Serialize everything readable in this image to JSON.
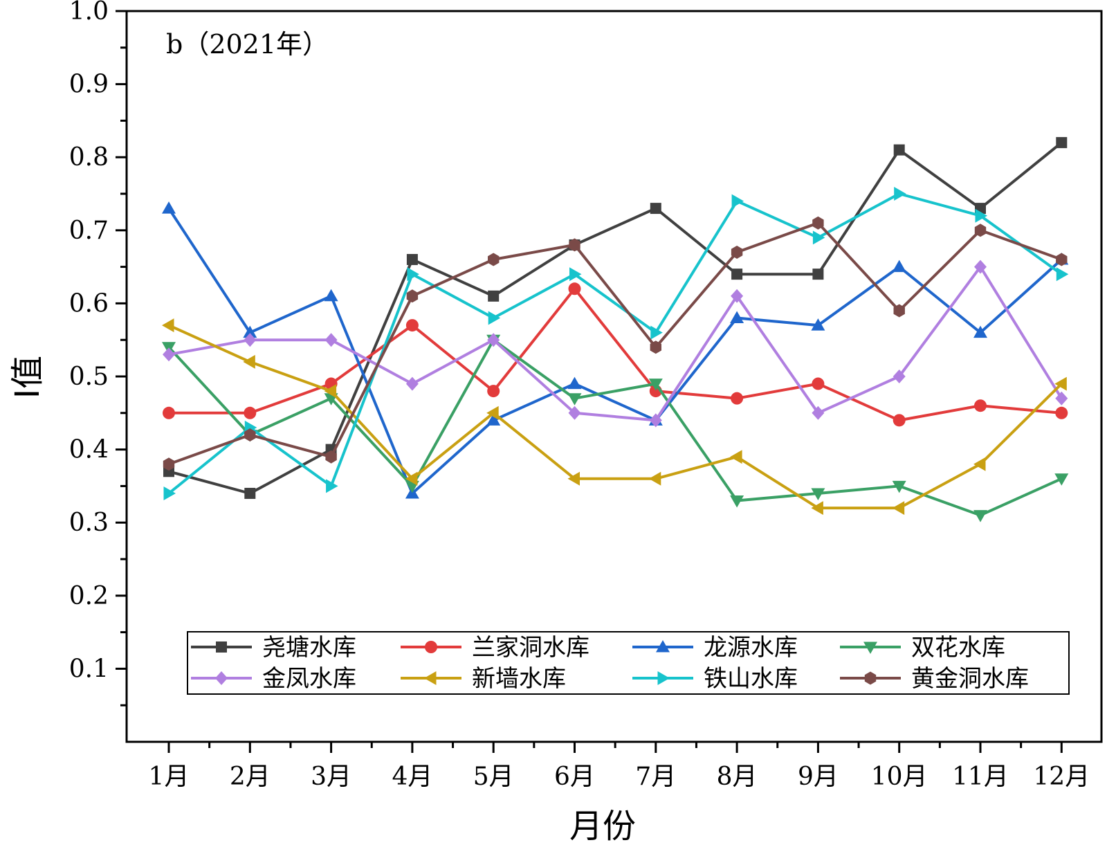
{
  "chart_data": {
    "type": "line",
    "panel_label": "b（2021年）",
    "xlabel": "月份",
    "ylabel": "I值",
    "ylim": [
      0,
      1.0
    ],
    "y_ticks": [
      "0.1",
      "0.2",
      "0.3",
      "0.4",
      "0.5",
      "0.6",
      "0.7",
      "0.8",
      "0.9",
      "1.0"
    ],
    "categories": [
      "1月",
      "2月",
      "3月",
      "4月",
      "5月",
      "6月",
      "7月",
      "8月",
      "9月",
      "10月",
      "11月",
      "12月"
    ],
    "legend_position": "bottom-center",
    "grid": false,
    "series": [
      {
        "name": "尧塘水库",
        "color": "#404040",
        "marker": "square",
        "values": [
          0.37,
          0.34,
          0.4,
          0.66,
          0.61,
          0.68,
          0.73,
          0.64,
          0.64,
          0.81,
          0.73,
          0.82
        ]
      },
      {
        "name": "兰家洞水库",
        "color": "#e23b3b",
        "marker": "circle",
        "values": [
          0.45,
          0.45,
          0.49,
          0.57,
          0.48,
          0.62,
          0.48,
          0.47,
          0.49,
          0.44,
          0.46,
          0.45
        ]
      },
      {
        "name": "龙源水库",
        "color": "#1f66cc",
        "marker": "triangle-up",
        "values": [
          0.73,
          0.56,
          0.61,
          0.34,
          0.44,
          0.49,
          0.44,
          0.58,
          0.57,
          0.65,
          0.56,
          0.66
        ]
      },
      {
        "name": "双花水库",
        "color": "#3aa065",
        "marker": "triangle-down",
        "values": [
          0.54,
          0.42,
          0.47,
          0.35,
          0.55,
          0.47,
          0.49,
          0.33,
          0.34,
          0.35,
          0.31,
          0.36
        ]
      },
      {
        "name": "金凤水库",
        "color": "#b07fe0",
        "marker": "diamond",
        "values": [
          0.53,
          0.55,
          0.55,
          0.49,
          0.55,
          0.45,
          0.44,
          0.61,
          0.45,
          0.5,
          0.65,
          0.47
        ]
      },
      {
        "name": "新墙水库",
        "color": "#c9a012",
        "marker": "triangle-left",
        "values": [
          0.57,
          0.52,
          0.48,
          0.36,
          0.45,
          0.36,
          0.36,
          0.39,
          0.32,
          0.32,
          0.38,
          0.49
        ]
      },
      {
        "name": "铁山水库",
        "color": "#17c3cc",
        "marker": "triangle-right",
        "values": [
          0.34,
          0.43,
          0.35,
          0.64,
          0.58,
          0.64,
          0.56,
          0.74,
          0.69,
          0.75,
          0.72,
          0.64
        ]
      },
      {
        "name": "黄金洞水库",
        "color": "#7a4a48",
        "marker": "hexagon",
        "values": [
          0.38,
          0.42,
          0.39,
          0.61,
          0.66,
          0.68,
          0.54,
          0.67,
          0.71,
          0.59,
          0.7,
          0.66
        ]
      }
    ]
  }
}
